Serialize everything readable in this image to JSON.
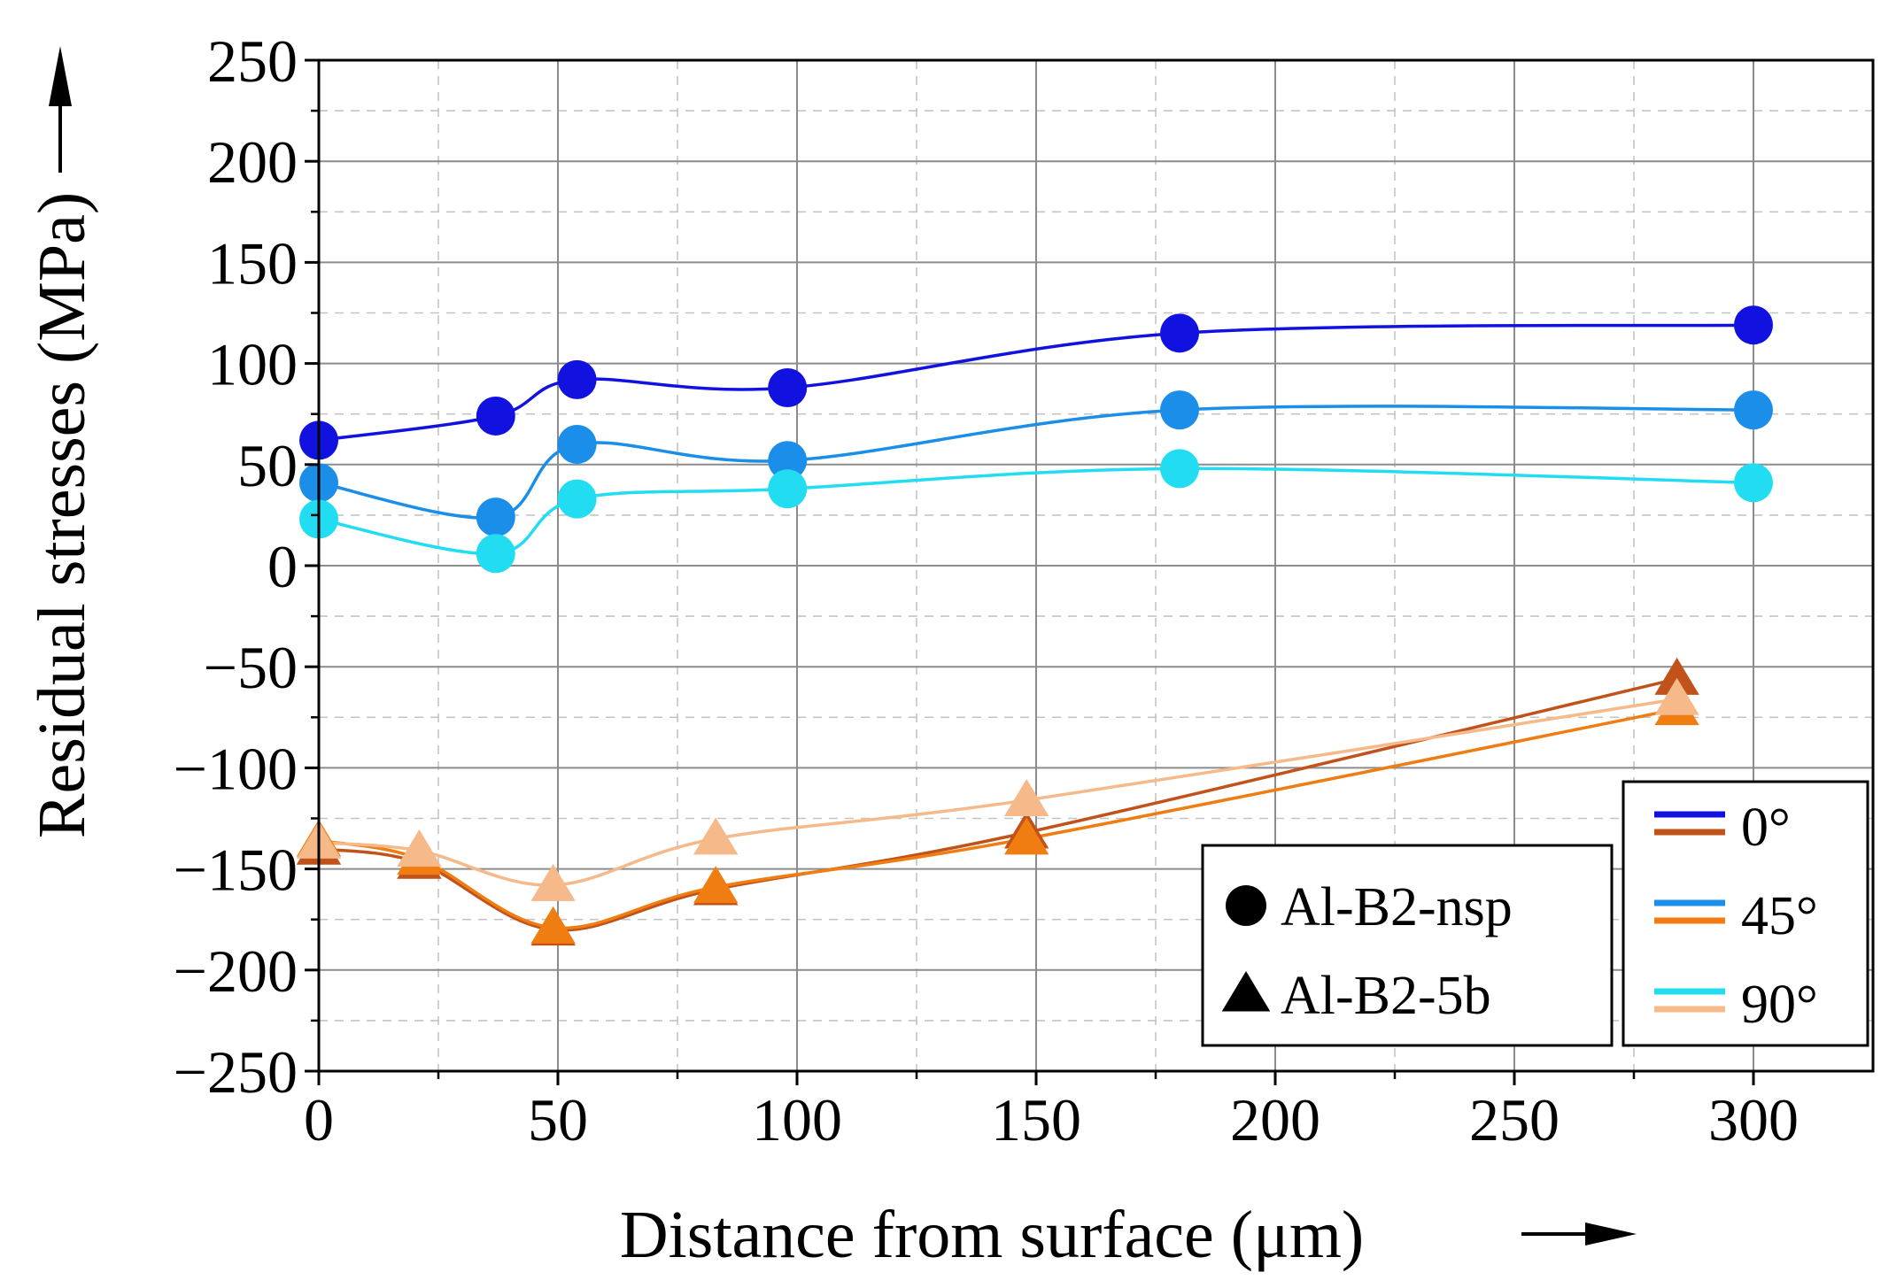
{
  "chart_data": {
    "type": "line",
    "title": "",
    "xlabel": "Distance from surface (μm)",
    "xlabel_arrow": "→",
    "ylabel": "Residual stresses (MPa)",
    "ylabel_arrow": "→",
    "xlim": [
      0,
      325
    ],
    "ylim": [
      -250,
      250
    ],
    "xticks": [
      0,
      50,
      100,
      150,
      200,
      250,
      300
    ],
    "yticks": [
      250,
      200,
      150,
      100,
      50,
      0,
      -50,
      -100,
      -150,
      -200,
      -250
    ],
    "ytick_labels": [
      "250",
      "200",
      "150",
      "100",
      "50",
      "0",
      "−50",
      "−100",
      "−150",
      "−200",
      "−250"
    ],
    "grid": true,
    "series": [
      {
        "name": "Al-B2-nsp 0°",
        "sample": "Al-B2-nsp",
        "angle": "0°",
        "marker": "circle",
        "color": "#1212e0",
        "x": [
          0,
          37,
          54,
          98,
          180,
          300
        ],
        "y": [
          62,
          74,
          92,
          88,
          115,
          119
        ]
      },
      {
        "name": "Al-B2-nsp 45°",
        "sample": "Al-B2-nsp",
        "angle": "45°",
        "marker": "circle",
        "color": "#1a8ee8",
        "x": [
          0,
          37,
          54,
          98,
          180,
          300
        ],
        "y": [
          41,
          24,
          60,
          52,
          77,
          77
        ]
      },
      {
        "name": "Al-B2-nsp 90°",
        "sample": "Al-B2-nsp",
        "angle": "90°",
        "marker": "circle",
        "color": "#22ddf2",
        "x": [
          0,
          37,
          54,
          98,
          180,
          300
        ],
        "y": [
          23,
          6,
          33,
          38,
          48,
          41
        ]
      },
      {
        "name": "Al-B2-5b 0°",
        "sample": "Al-B2-5b",
        "angle": "0°",
        "marker": "triangle",
        "color": "#c0521a",
        "x": [
          0,
          21,
          49,
          83,
          148,
          284
        ],
        "y": [
          -140,
          -147,
          -180,
          -160,
          -132,
          -56
        ]
      },
      {
        "name": "Al-B2-5b 45°",
        "sample": "Al-B2-5b",
        "angle": "45°",
        "marker": "triangle",
        "color": "#f07d12",
        "x": [
          0,
          21,
          49,
          83,
          148,
          284
        ],
        "y": [
          -136,
          -145,
          -179,
          -159,
          -135,
          -71
        ]
      },
      {
        "name": "Al-B2-5b 90°",
        "sample": "Al-B2-5b",
        "angle": "90°",
        "marker": "triangle",
        "color": "#f5b98a",
        "x": [
          0,
          21,
          49,
          83,
          148,
          284
        ],
        "y": [
          -137,
          -141,
          -158,
          -135,
          -116,
          -66
        ]
      }
    ],
    "legend_markers": {
      "location": "lower-right",
      "items": [
        {
          "label": "Al-B2-nsp",
          "marker": "circle"
        },
        {
          "label": "Al-B2-5b",
          "marker": "triangle"
        }
      ]
    },
    "legend_angles": {
      "location": "lower-right",
      "items": [
        {
          "label": "0°",
          "colors": [
            "#1212e0",
            "#c0521a"
          ]
        },
        {
          "label": "45°",
          "colors": [
            "#1a8ee8",
            "#f07d12"
          ]
        },
        {
          "label": "90°",
          "colors": [
            "#22ddf2",
            "#f5b98a"
          ]
        }
      ]
    }
  }
}
